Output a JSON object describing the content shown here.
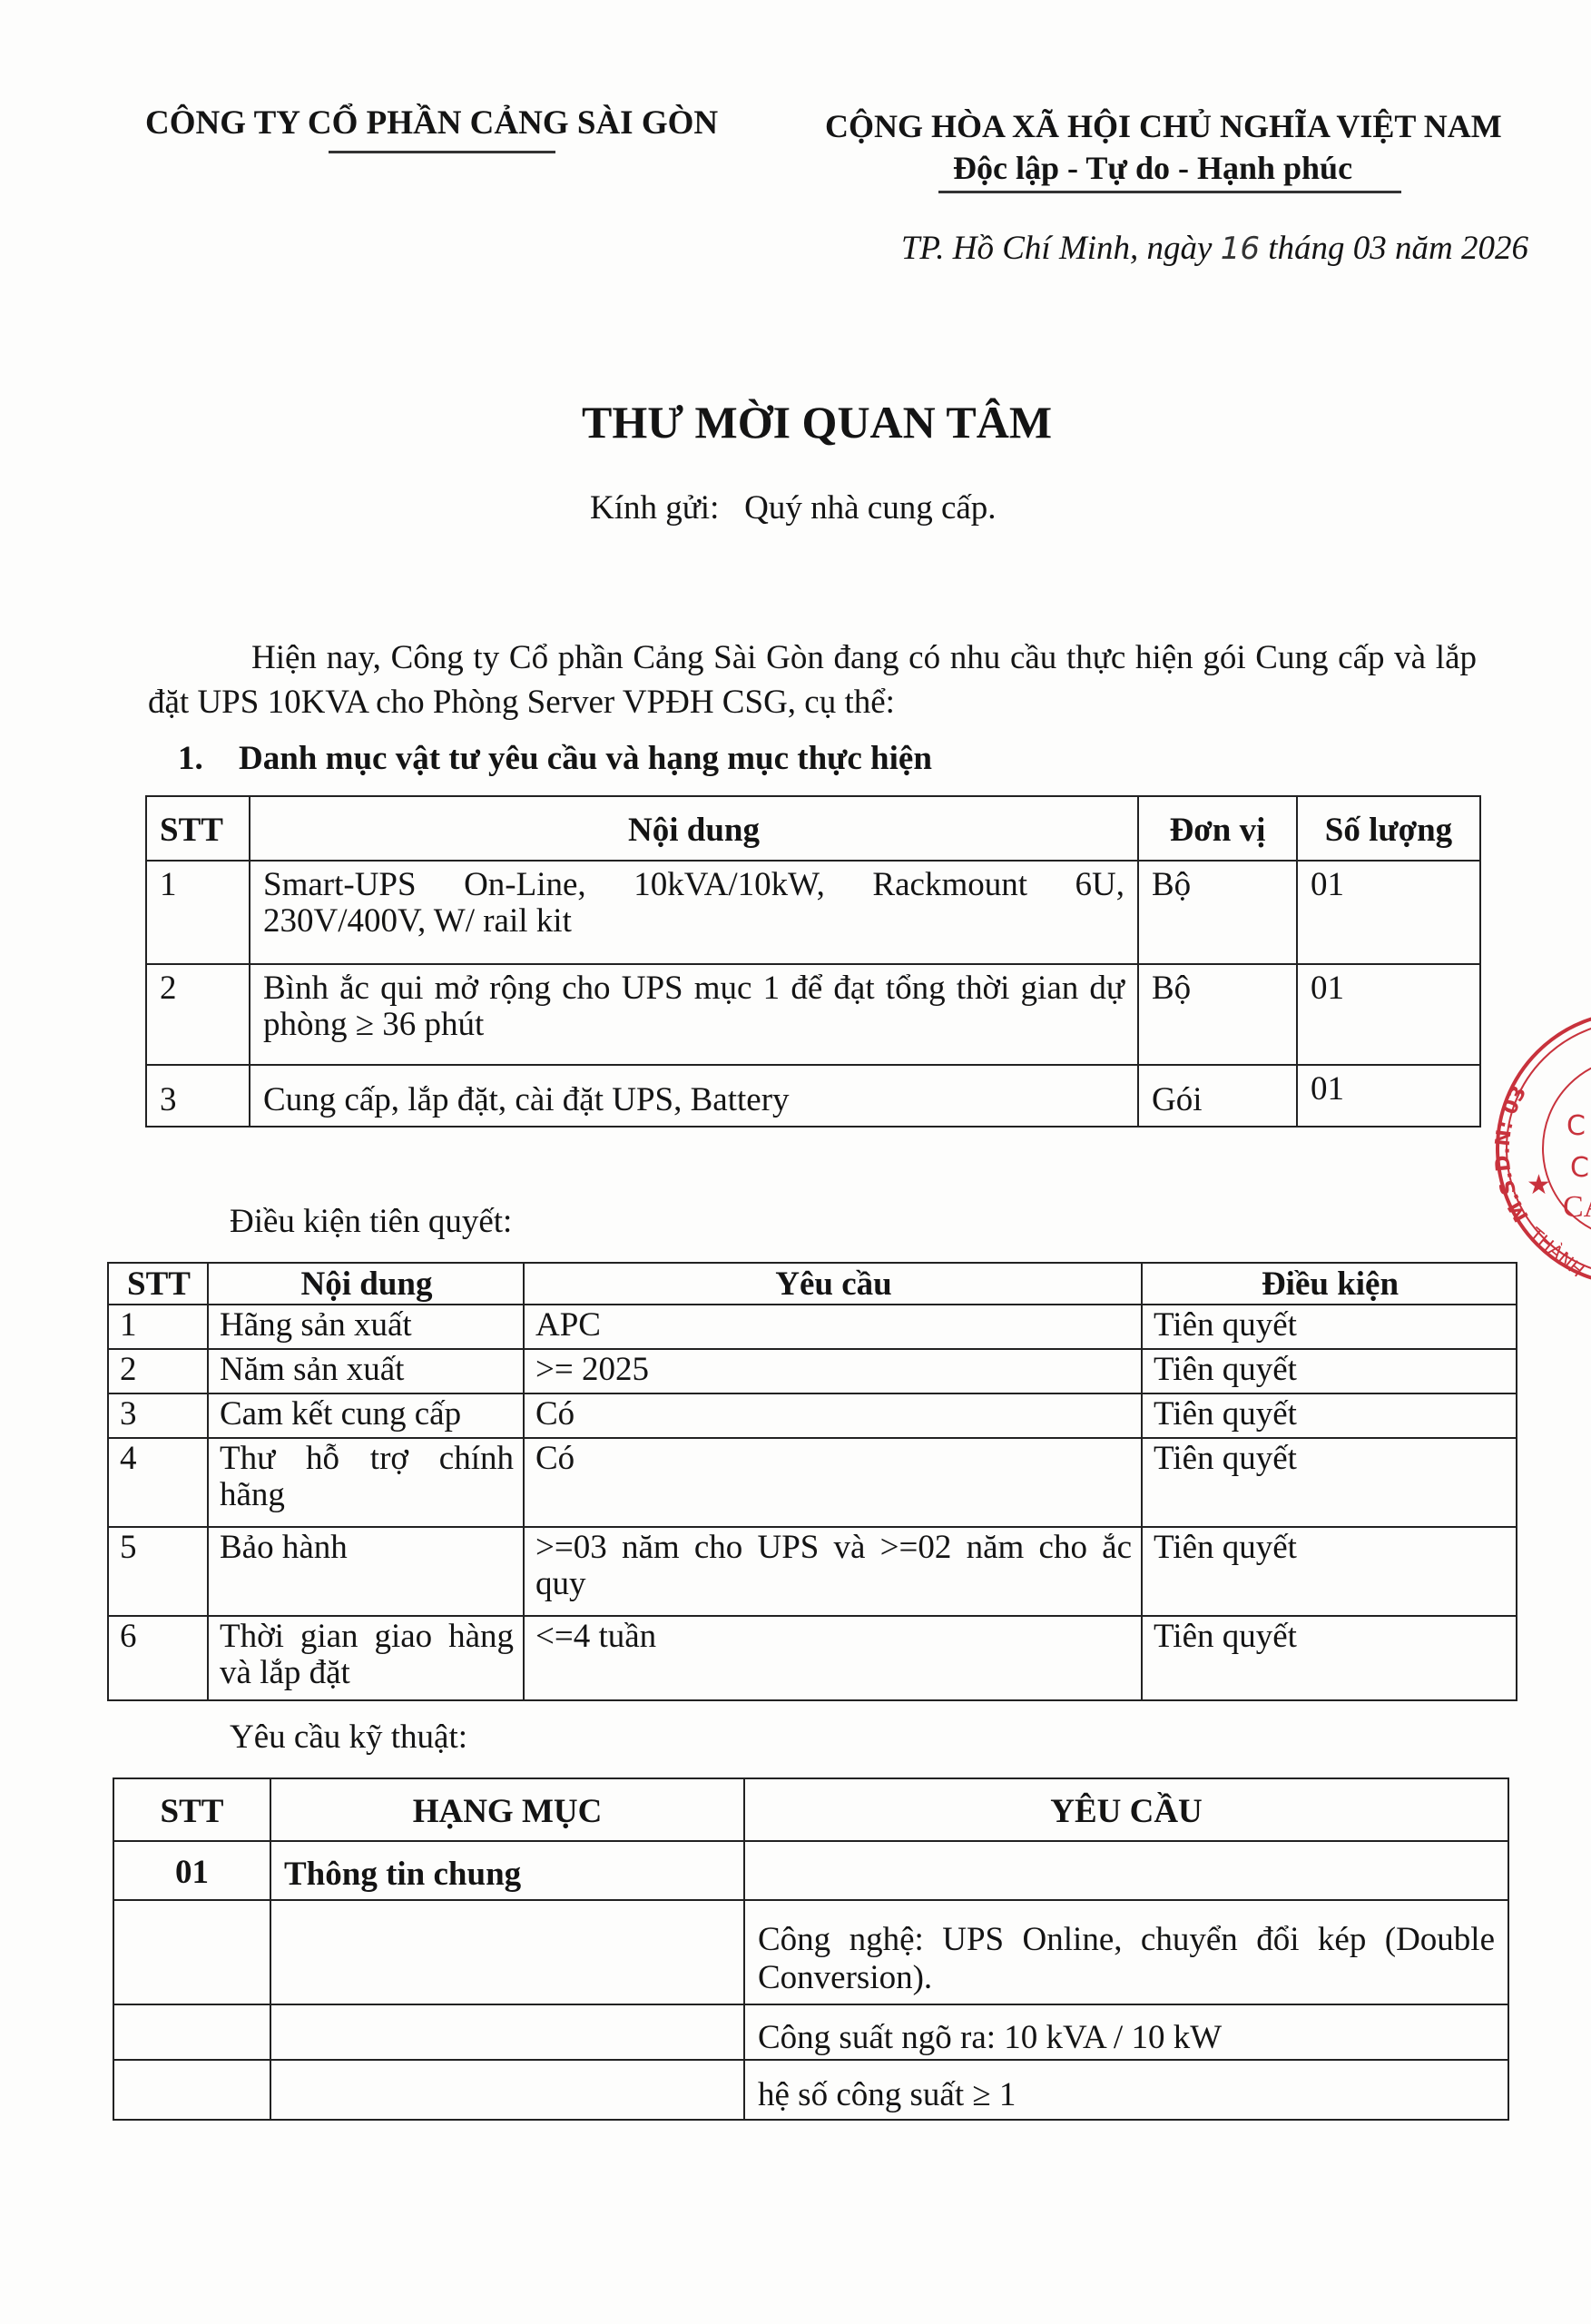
{
  "header": {
    "company": "CÔNG TY CỔ PHẦN CẢNG SÀI GÒN",
    "nation": "CỘNG HÒA XÃ HỘI CHỦ NGHĨA VIỆT NAM",
    "motto": "Độc lập - Tự do - Hạnh phúc",
    "date_prefix": "TP. Hồ Chí Minh, ngày",
    "date_day": "16",
    "date_suffix": "tháng 03 năm 2026"
  },
  "title": "THƯ MỜI QUAN TÂM",
  "salutation": {
    "label": "Kính gửi:",
    "recipient": "Quý nhà cung cấp."
  },
  "intro": "Hiện nay, Công ty Cổ phần Cảng Sài Gòn đang có nhu cầu thực hiện gói Cung cấp và lắp đặt UPS 10KVA cho Phòng Server VPĐH CSG, cụ thể:",
  "section1": {
    "number": "1.",
    "title": "Danh mục vật tư yêu cầu và hạng mục thực hiện"
  },
  "table1": {
    "headers": [
      "STT",
      "Nội dung",
      "Đơn vị",
      "Số lượng"
    ],
    "rows": [
      [
        "1",
        "Smart-UPS On-Line, 10kVA/10kW, Rackmount 6U, 230V/400V, W/ rail kit",
        "Bộ",
        "01"
      ],
      [
        "2",
        "Bình ắc qui mở rộng cho UPS mục 1 để đạt tổng thời gian dự phòng ≥ 36 phút",
        "Bộ",
        "01"
      ],
      [
        "3",
        "Cung cấp, lắp đặt, cài đặt UPS, Battery",
        "Gói",
        "01"
      ]
    ]
  },
  "prereq_label": "Điều kiện tiên quyết:",
  "table2": {
    "headers": [
      "STT",
      "Nội dung",
      "Yêu cầu",
      "Điều kiện"
    ],
    "rows": [
      [
        "1",
        "Hãng sản xuất",
        "APC",
        "Tiên quyết"
      ],
      [
        "2",
        "Năm sản xuất",
        ">= 2025",
        "Tiên quyết"
      ],
      [
        "3",
        "Cam kết cung cấp",
        "Có",
        "Tiên quyết"
      ],
      [
        "4",
        "Thư hỗ trợ chính hãng",
        "Có",
        "Tiên quyết"
      ],
      [
        "5",
        "Bảo hành",
        ">=03 năm cho UPS và >=02 năm cho ắc quy",
        "Tiên quyết"
      ],
      [
        "6",
        "Thời gian giao hàng và lắp đặt",
        "<=4 tuần",
        "Tiên quyết"
      ]
    ]
  },
  "tech_label": "Yêu cầu kỹ thuật:",
  "table3": {
    "headers": [
      "STT",
      "HẠNG MỤC",
      "YÊU CẦU"
    ],
    "rows": [
      [
        "01",
        "Thông tin chung",
        ""
      ],
      [
        "",
        "",
        "Công nghệ: UPS Online, chuyển đổi kép (Double Conversion)."
      ],
      [
        "",
        "",
        "Công suất ngõ ra: 10 kVA / 10 kW"
      ],
      [
        "",
        "",
        "hệ số công suất ≥ 1"
      ]
    ]
  },
  "stamp": {
    "text": "M.S.D.N: 03 … THÀNH … CẢ",
    "color": "#c8323c"
  }
}
